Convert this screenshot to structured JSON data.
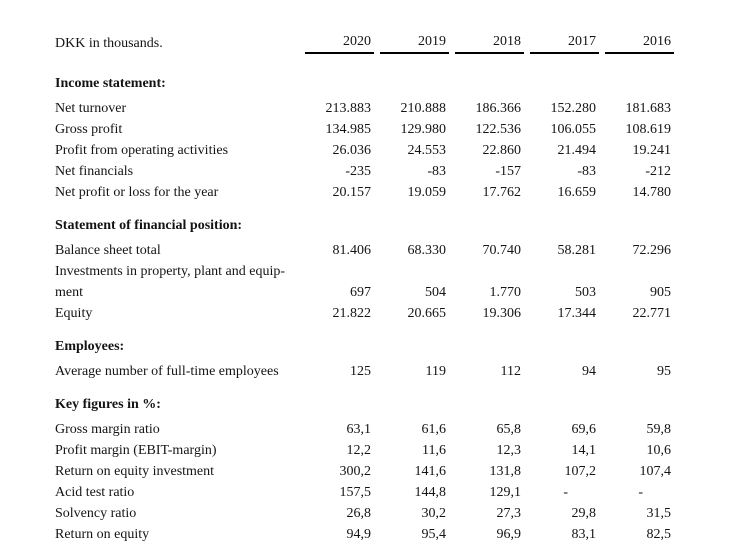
{
  "meta": {
    "unit_label": "DKK in thousands.",
    "years": [
      "2020",
      "2019",
      "2018",
      "2017",
      "2016"
    ],
    "text_color": "#141414",
    "rule_color": "#000000"
  },
  "sections": [
    {
      "title": "Income statement:",
      "rows": [
        {
          "label": "Net turnover",
          "values": [
            "213.883",
            "210.888",
            "186.366",
            "152.280",
            "181.683"
          ]
        },
        {
          "label": "Gross profit",
          "values": [
            "134.985",
            "129.980",
            "122.536",
            "106.055",
            "108.619"
          ]
        },
        {
          "label": "Profit from operating activities",
          "values": [
            "26.036",
            "24.553",
            "22.860",
            "21.494",
            "19.241"
          ]
        },
        {
          "label": "Net financials",
          "values": [
            "-235",
            "-83",
            "-157",
            "-83",
            "-212"
          ]
        },
        {
          "label": "Net profit or loss for the year",
          "values": [
            "20.157",
            "19.059",
            "17.762",
            "16.659",
            "14.780"
          ]
        }
      ]
    },
    {
      "title": "Statement of financial position:",
      "rows": [
        {
          "label": "Balance sheet total",
          "values": [
            "81.406",
            "68.330",
            "70.740",
            "58.281",
            "72.296"
          ]
        },
        {
          "label": "Investments in property, plant and equip-\nment",
          "values": [
            "697",
            "504",
            "1.770",
            "503",
            "905"
          ]
        },
        {
          "label": "Equity",
          "values": [
            "21.822",
            "20.665",
            "19.306",
            "17.344",
            "22.771"
          ]
        }
      ]
    },
    {
      "title": "Employees:",
      "rows": [
        {
          "label": "Average number of full-time employees",
          "values": [
            "125",
            "119",
            "112",
            "94",
            "95"
          ]
        }
      ]
    },
    {
      "title": "Key figures in %:",
      "rows": [
        {
          "label": "Gross margin ratio",
          "values": [
            "63,1",
            "61,6",
            "65,8",
            "69,6",
            "59,8"
          ]
        },
        {
          "label": "Profit margin (EBIT-margin)",
          "values": [
            "12,2",
            "11,6",
            "12,3",
            "14,1",
            "10,6"
          ]
        },
        {
          "label": "Return on equity investment",
          "values": [
            "300,2",
            "141,6",
            "131,8",
            "107,2",
            "107,4"
          ]
        },
        {
          "label": "Acid test ratio",
          "values": [
            "157,5",
            "144,8",
            "129,1",
            "-",
            "-"
          ]
        },
        {
          "label": "Solvency ratio",
          "values": [
            "26,8",
            "30,2",
            "27,3",
            "29,8",
            "31,5"
          ]
        },
        {
          "label": "Return on equity",
          "values": [
            "94,9",
            "95,4",
            "96,9",
            "83,1",
            "82,5"
          ]
        }
      ]
    }
  ]
}
